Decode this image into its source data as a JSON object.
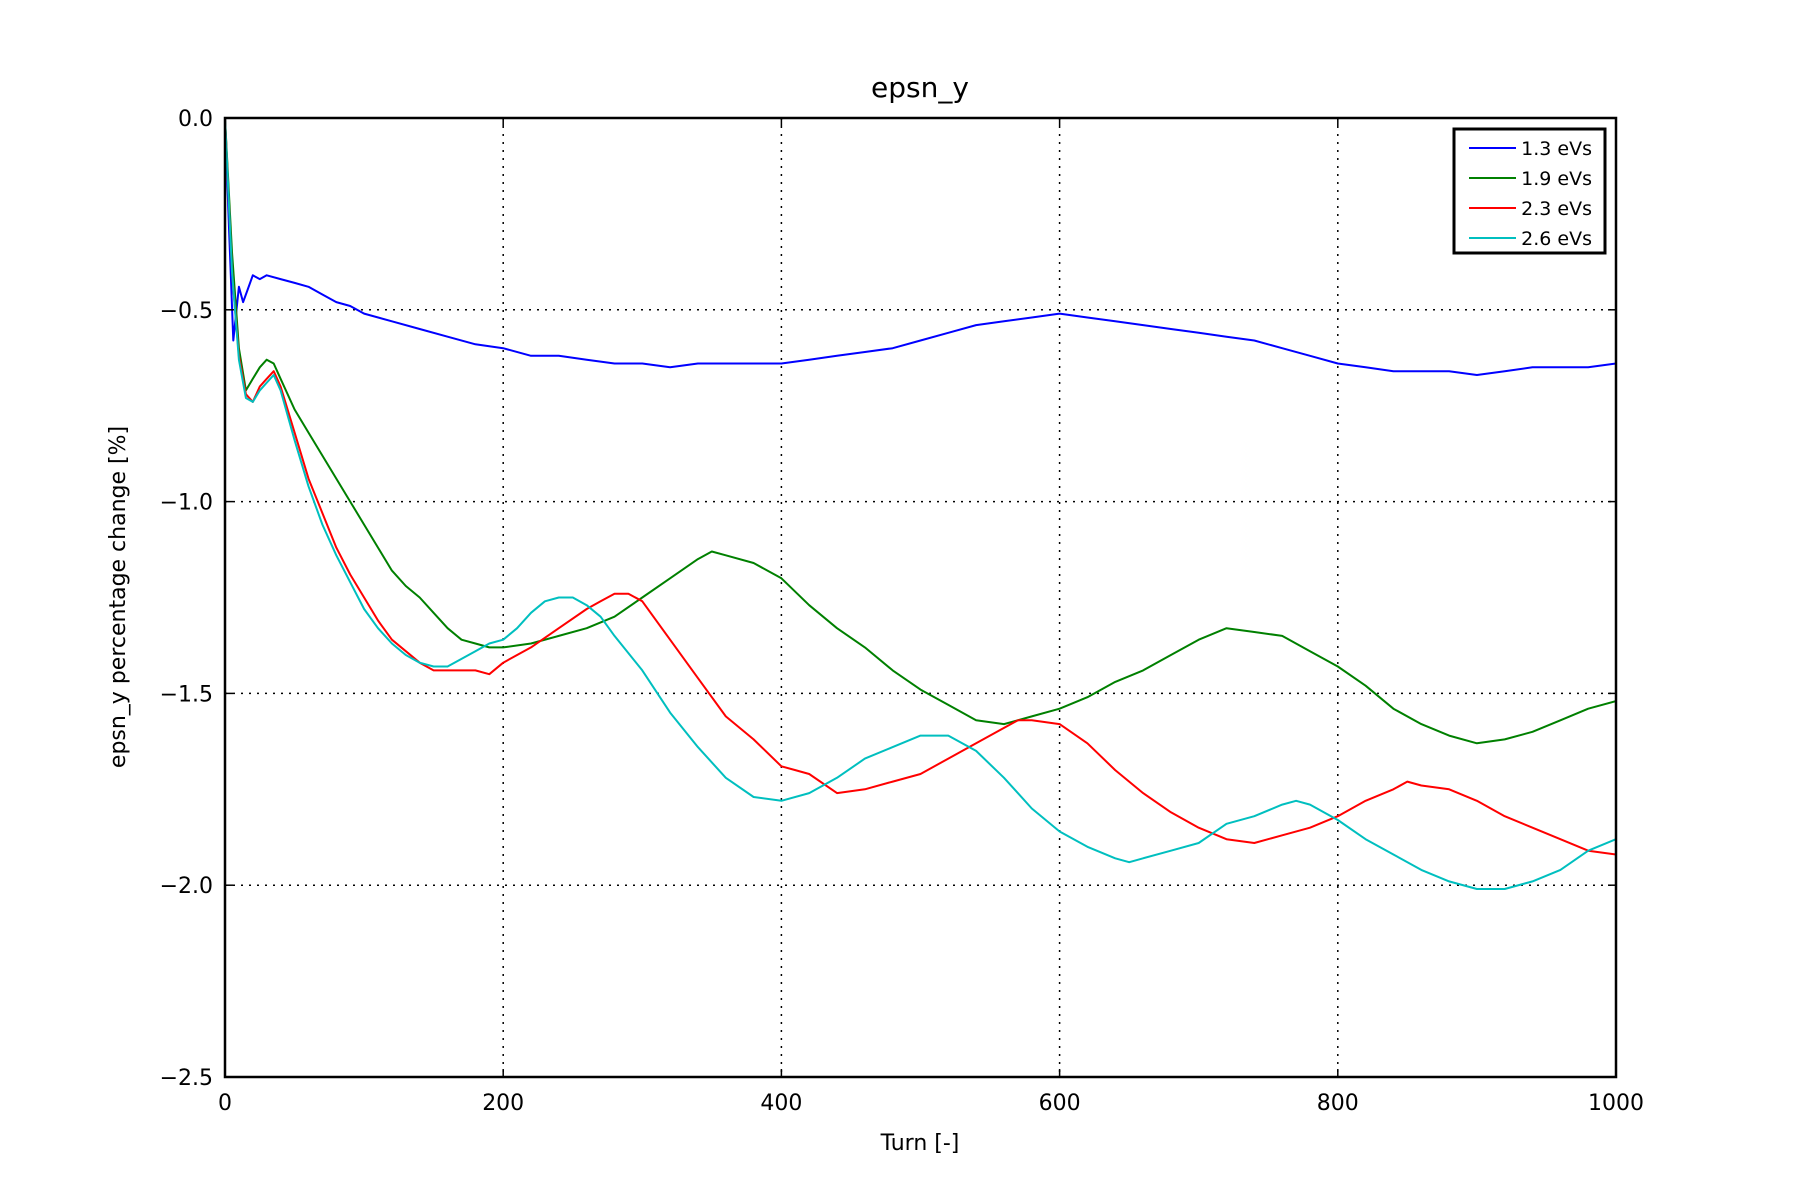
{
  "chart_data": {
    "type": "line",
    "title": "epsn_y",
    "xlabel": "Turn [-]",
    "ylabel": "epsn_y percentage change [%]",
    "xlim": [
      0,
      1000
    ],
    "ylim": [
      -2.5,
      0.0
    ],
    "xticks": [
      0,
      200,
      400,
      600,
      800,
      1000
    ],
    "xtick_labels": [
      "0",
      "200",
      "400",
      "600",
      "800",
      "1000"
    ],
    "yticks": [
      0.0,
      -0.5,
      -1.0,
      -1.5,
      -2.0,
      -2.5
    ],
    "ytick_labels": [
      "0.0",
      "−0.5",
      "−1.0",
      "−1.5",
      "−2.0",
      "−2.5"
    ],
    "grid": true,
    "grid_style": "dotted",
    "legend_position": "top-right",
    "series": [
      {
        "name": "1.3 eVs",
        "color": "#0000ff",
        "x": [
          0,
          3,
          6,
          10,
          13,
          16,
          20,
          25,
          30,
          40,
          50,
          60,
          70,
          80,
          90,
          100,
          120,
          140,
          160,
          180,
          200,
          220,
          240,
          260,
          280,
          300,
          320,
          340,
          360,
          380,
          400,
          420,
          440,
          460,
          480,
          500,
          520,
          540,
          560,
          580,
          600,
          620,
          640,
          660,
          680,
          700,
          720,
          740,
          760,
          780,
          800,
          820,
          840,
          860,
          880,
          900,
          920,
          940,
          960,
          980,
          1000
        ],
        "y": [
          0.0,
          -0.3,
          -0.58,
          -0.44,
          -0.48,
          -0.45,
          -0.41,
          -0.42,
          -0.41,
          -0.42,
          -0.43,
          -0.44,
          -0.46,
          -0.48,
          -0.49,
          -0.51,
          -0.53,
          -0.55,
          -0.57,
          -0.59,
          -0.6,
          -0.62,
          -0.62,
          -0.63,
          -0.64,
          -0.64,
          -0.65,
          -0.64,
          -0.64,
          -0.64,
          -0.64,
          -0.63,
          -0.62,
          -0.61,
          -0.6,
          -0.58,
          -0.56,
          -0.54,
          -0.53,
          -0.52,
          -0.51,
          -0.52,
          -0.53,
          -0.54,
          -0.55,
          -0.56,
          -0.57,
          -0.58,
          -0.6,
          -0.62,
          -0.64,
          -0.65,
          -0.66,
          -0.66,
          -0.66,
          -0.67,
          -0.66,
          -0.65,
          -0.65,
          -0.65,
          -0.64
        ]
      },
      {
        "name": "1.9 eVs",
        "color": "#008000",
        "x": [
          0,
          5,
          10,
          15,
          20,
          25,
          30,
          35,
          40,
          50,
          60,
          70,
          80,
          90,
          100,
          110,
          120,
          130,
          140,
          150,
          160,
          170,
          180,
          190,
          200,
          220,
          240,
          260,
          280,
          300,
          320,
          340,
          350,
          360,
          380,
          400,
          420,
          440,
          460,
          480,
          500,
          520,
          540,
          560,
          580,
          600,
          620,
          640,
          660,
          680,
          700,
          720,
          740,
          760,
          780,
          800,
          820,
          840,
          860,
          880,
          900,
          920,
          940,
          960,
          980,
          1000
        ],
        "y": [
          0.0,
          -0.35,
          -0.6,
          -0.71,
          -0.68,
          -0.65,
          -0.63,
          -0.64,
          -0.68,
          -0.76,
          -0.82,
          -0.88,
          -0.94,
          -1.0,
          -1.06,
          -1.12,
          -1.18,
          -1.22,
          -1.25,
          -1.29,
          -1.33,
          -1.36,
          -1.37,
          -1.38,
          -1.38,
          -1.37,
          -1.35,
          -1.33,
          -1.3,
          -1.25,
          -1.2,
          -1.15,
          -1.13,
          -1.14,
          -1.16,
          -1.2,
          -1.27,
          -1.33,
          -1.38,
          -1.44,
          -1.49,
          -1.53,
          -1.57,
          -1.58,
          -1.56,
          -1.54,
          -1.51,
          -1.47,
          -1.44,
          -1.4,
          -1.36,
          -1.33,
          -1.34,
          -1.35,
          -1.39,
          -1.43,
          -1.48,
          -1.54,
          -1.58,
          -1.61,
          -1.63,
          -1.62,
          -1.6,
          -1.57,
          -1.54,
          -1.52
        ]
      },
      {
        "name": "2.3 eVs",
        "color": "#ff0000",
        "x": [
          0,
          5,
          10,
          15,
          20,
          25,
          30,
          35,
          40,
          50,
          60,
          70,
          80,
          90,
          100,
          110,
          120,
          130,
          140,
          150,
          160,
          170,
          180,
          190,
          200,
          210,
          220,
          240,
          260,
          270,
          280,
          290,
          300,
          320,
          340,
          360,
          380,
          400,
          410,
          420,
          440,
          460,
          480,
          500,
          520,
          540,
          560,
          570,
          580,
          600,
          620,
          640,
          660,
          680,
          700,
          720,
          740,
          760,
          780,
          800,
          820,
          840,
          850,
          860,
          880,
          900,
          920,
          940,
          960,
          980,
          1000
        ],
        "y": [
          0.0,
          -0.4,
          -0.62,
          -0.72,
          -0.74,
          -0.7,
          -0.68,
          -0.66,
          -0.7,
          -0.82,
          -0.94,
          -1.03,
          -1.12,
          -1.19,
          -1.25,
          -1.31,
          -1.36,
          -1.39,
          -1.42,
          -1.44,
          -1.44,
          -1.44,
          -1.44,
          -1.45,
          -1.42,
          -1.4,
          -1.38,
          -1.33,
          -1.28,
          -1.26,
          -1.24,
          -1.24,
          -1.26,
          -1.36,
          -1.46,
          -1.56,
          -1.62,
          -1.69,
          -1.7,
          -1.71,
          -1.76,
          -1.75,
          -1.73,
          -1.71,
          -1.67,
          -1.63,
          -1.59,
          -1.57,
          -1.57,
          -1.58,
          -1.63,
          -1.7,
          -1.76,
          -1.81,
          -1.85,
          -1.88,
          -1.89,
          -1.87,
          -1.85,
          -1.82,
          -1.78,
          -1.75,
          -1.73,
          -1.74,
          -1.75,
          -1.78,
          -1.82,
          -1.85,
          -1.88,
          -1.91,
          -1.92
        ]
      },
      {
        "name": "2.6 eVs",
        "color": "#00bfbf",
        "x": [
          0,
          5,
          10,
          15,
          20,
          25,
          30,
          35,
          40,
          50,
          60,
          70,
          80,
          90,
          100,
          110,
          120,
          130,
          140,
          150,
          160,
          170,
          180,
          190,
          200,
          210,
          220,
          230,
          240,
          250,
          260,
          270,
          280,
          300,
          320,
          340,
          360,
          380,
          400,
          420,
          440,
          460,
          480,
          500,
          510,
          520,
          540,
          560,
          580,
          600,
          620,
          640,
          650,
          660,
          680,
          700,
          720,
          740,
          760,
          770,
          780,
          800,
          820,
          840,
          860,
          880,
          900,
          920,
          940,
          960,
          980,
          1000
        ],
        "y": [
          0.0,
          -0.4,
          -0.63,
          -0.73,
          -0.74,
          -0.71,
          -0.69,
          -0.67,
          -0.71,
          -0.84,
          -0.96,
          -1.06,
          -1.14,
          -1.21,
          -1.28,
          -1.33,
          -1.37,
          -1.4,
          -1.42,
          -1.43,
          -1.43,
          -1.41,
          -1.39,
          -1.37,
          -1.36,
          -1.33,
          -1.29,
          -1.26,
          -1.25,
          -1.25,
          -1.27,
          -1.3,
          -1.35,
          -1.44,
          -1.55,
          -1.64,
          -1.72,
          -1.77,
          -1.78,
          -1.76,
          -1.72,
          -1.67,
          -1.64,
          -1.61,
          -1.61,
          -1.61,
          -1.65,
          -1.72,
          -1.8,
          -1.86,
          -1.9,
          -1.93,
          -1.94,
          -1.93,
          -1.91,
          -1.89,
          -1.84,
          -1.82,
          -1.79,
          -1.78,
          -1.79,
          -1.83,
          -1.88,
          -1.92,
          -1.96,
          -1.99,
          -2.01,
          -2.01,
          -1.99,
          -1.96,
          -1.91,
          -1.88
        ]
      }
    ]
  },
  "colors": {
    "axes": "#000000",
    "grid": "#000000",
    "background": "#ffffff"
  }
}
